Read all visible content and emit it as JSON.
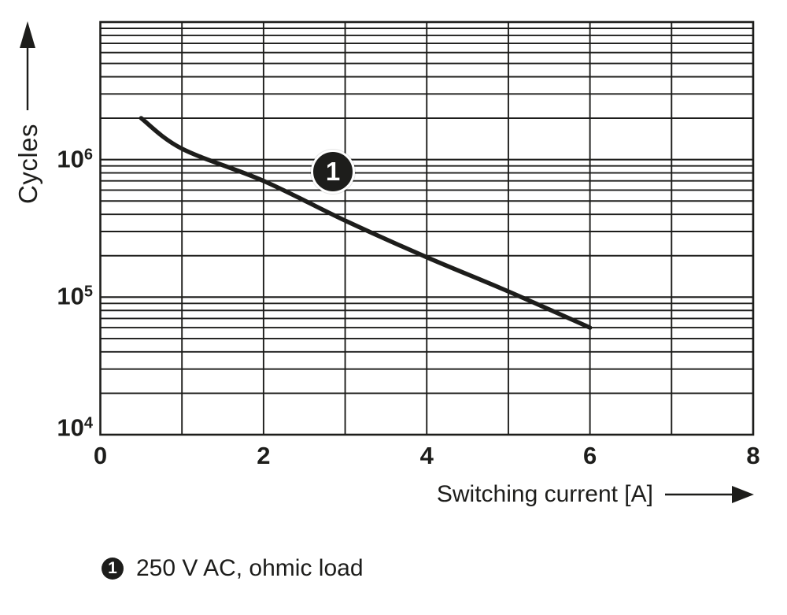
{
  "colors": {
    "ink": "#1d1d1b",
    "background": "#ffffff"
  },
  "chart_data": {
    "type": "line",
    "xlabel": "Switching current [A]",
    "ylabel": "Cycles",
    "grid": true,
    "x_axis": {
      "min": 0,
      "max": 8,
      "minor_grid_step": 1,
      "tick_values": [
        0,
        2,
        4,
        6,
        8
      ],
      "tick_labels": [
        "0",
        "2",
        "4",
        "6",
        "8"
      ]
    },
    "y_axis": {
      "scale": "log",
      "min": 10000,
      "max": 10000000,
      "minor_grid": "mantissas 2-9 each decade",
      "tick_values": [
        10000,
        100000,
        1000000
      ],
      "tick_labels": [
        {
          "base": "10",
          "exp": "4"
        },
        {
          "base": "10",
          "exp": "5"
        },
        {
          "base": "10",
          "exp": "6"
        }
      ]
    },
    "series": [
      {
        "id": "1",
        "legend": "250 V AC, ohmic load",
        "color": "#1d1d1b",
        "points": [
          {
            "x": 0.5,
            "y": 2000000
          },
          {
            "x": 1.0,
            "y": 1200000
          },
          {
            "x": 2.0,
            "y": 700000
          },
          {
            "x": 3.0,
            "y": 360000
          },
          {
            "x": 4.0,
            "y": 195000
          },
          {
            "x": 5.0,
            "y": 110000
          },
          {
            "x": 6.0,
            "y": 60000
          }
        ],
        "marker_badge": {
          "label": "1",
          "x": 2.85,
          "y": 820000
        }
      }
    ]
  },
  "legend": {
    "badge": "1",
    "text": "250 V AC, ohmic load"
  }
}
